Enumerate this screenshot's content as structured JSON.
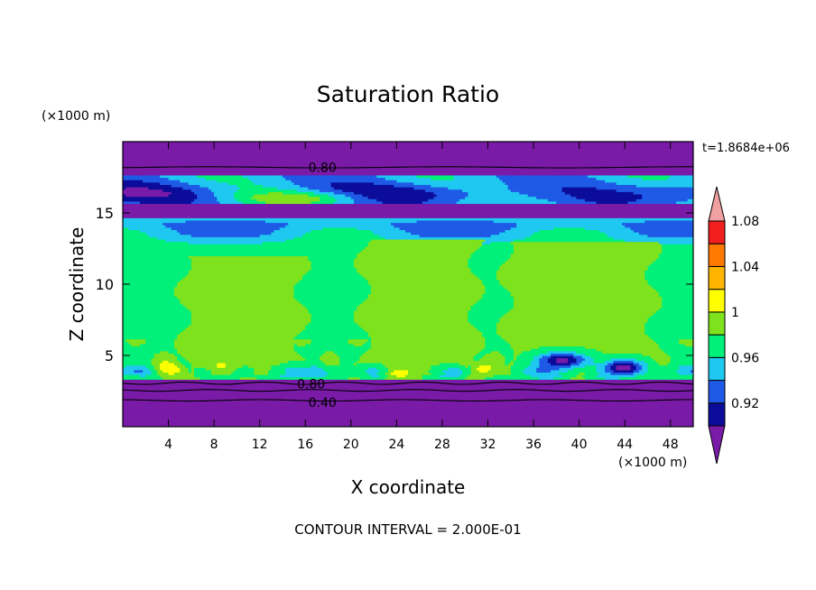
{
  "chart_data": {
    "type": "heatmap",
    "title": "Saturation Ratio",
    "xlabel": "X coordinate",
    "ylabel": "Z coordinate",
    "x_unit": "(×1000 m)",
    "y_unit": "(×1000 m)",
    "time_label": "t=1.8684e+06",
    "footer": "CONTOUR INTERVAL = 2.000E-01",
    "xlim": [
      0,
      50
    ],
    "ylim": [
      0,
      20
    ],
    "x_ticks": [
      4,
      8,
      12,
      16,
      20,
      24,
      28,
      32,
      36,
      40,
      44,
      48
    ],
    "y_ticks": [
      5,
      10,
      15
    ],
    "grid": false,
    "contour_labels": [
      {
        "text": "0.80",
        "x": 17.5,
        "z": 18.2
      },
      {
        "text": "0.80",
        "x": 16.5,
        "z": 3.0
      },
      {
        "text": "0.40",
        "x": 17.5,
        "z": 1.7
      }
    ],
    "colorbar": {
      "levels": [
        0.92,
        0.94,
        0.96,
        0.98,
        1.0,
        1.02,
        1.04,
        1.06,
        1.08,
        1.1
      ],
      "tick_labels": [
        "1.08",
        "1.04",
        "1",
        "0.96",
        "0.92"
      ],
      "colors": [
        "#7a1ba8",
        "#0c0c9a",
        "#1e5ae6",
        "#1ec8f0",
        "#00f07a",
        "#7ee21c",
        "#ffff00",
        "#ffb400",
        "#ff7800",
        "#f01e1e",
        "#f0a0a0"
      ],
      "under_color": "#7a1ba8",
      "over_color": "#f0a0a0"
    }
  }
}
